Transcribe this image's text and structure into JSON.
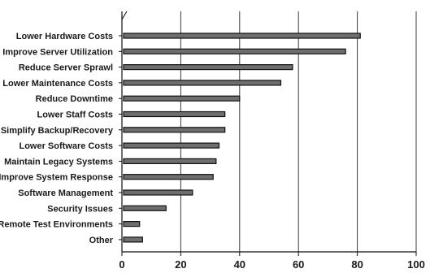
{
  "chart_data": {
    "type": "bar",
    "orientation": "horizontal",
    "categories": [
      "Lower Hardware Costs",
      "Improve Server Utilization",
      "Reduce Server Sprawl",
      "Lower Maintenance Costs",
      "Reduce Downtime",
      "Lower Staff Costs",
      "Simplify Backup/Recovery",
      "Lower Software Costs",
      "Maintain Legacy Systems",
      "Improve System Response",
      "Software Management",
      "Security Issues",
      "Remote Test Environments",
      "Other"
    ],
    "values": [
      81,
      76,
      58,
      54,
      40,
      35,
      35,
      33,
      32,
      31,
      24,
      15,
      6,
      7
    ],
    "xlim": [
      0,
      100
    ],
    "xticks": [
      0,
      20,
      40,
      60,
      80,
      100
    ],
    "xtick_labels": [
      "0",
      "20",
      "40",
      "60",
      "80",
      "100"
    ],
    "grid": true,
    "bar_color": "#6e6e6e",
    "title": "",
    "xlabel": "",
    "ylabel": ""
  }
}
